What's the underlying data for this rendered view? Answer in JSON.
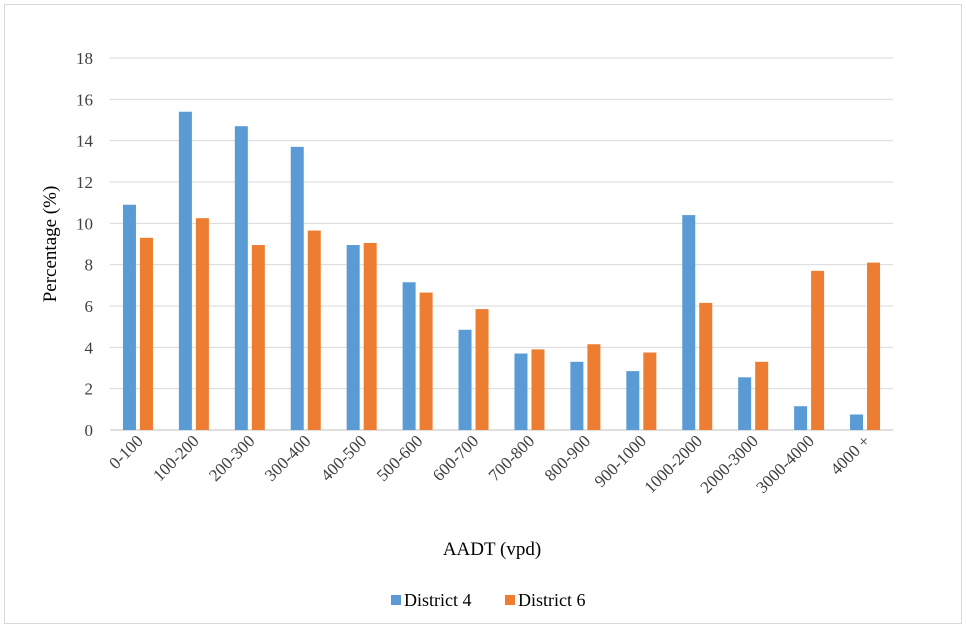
{
  "chart_data": {
    "type": "bar",
    "title": "",
    "xlabel": "AADT (vpd)",
    "ylabel": "Percentage (%)",
    "ylim": [
      0,
      18
    ],
    "yticks": [
      0,
      2,
      4,
      6,
      8,
      10,
      12,
      14,
      16,
      18
    ],
    "grid": true,
    "legend_position": "bottom",
    "categories": [
      "0-100",
      "100-200",
      "200-300",
      "300-400",
      "400-500",
      "500-600",
      "600-700",
      "700-800",
      "800-900",
      "900-1000",
      "1000-2000",
      "2000-3000",
      "3000-4000",
      "4000 +"
    ],
    "series": [
      {
        "name": "District 4",
        "color": "#5b9bd5",
        "values": [
          10.9,
          15.4,
          14.7,
          13.7,
          8.95,
          7.15,
          4.85,
          3.7,
          3.3,
          2.85,
          10.4,
          2.55,
          1.15,
          0.75
        ]
      },
      {
        "name": "District 6",
        "color": "#ed7d31",
        "values": [
          9.3,
          10.25,
          8.95,
          9.65,
          9.05,
          6.65,
          5.85,
          3.9,
          4.15,
          3.75,
          6.15,
          3.3,
          7.7,
          8.1
        ]
      }
    ]
  }
}
